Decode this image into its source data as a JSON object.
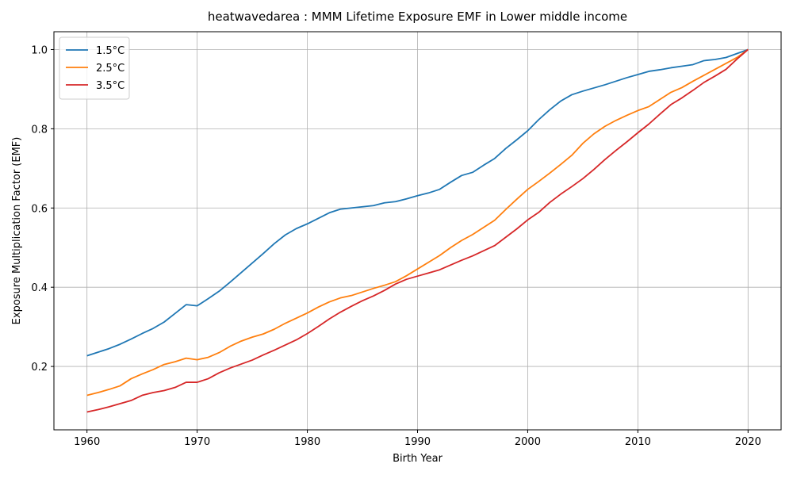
{
  "chart_data": {
    "type": "line",
    "title": "heatwavedarea : MMM Lifetime Exposure EMF in Lower middle income",
    "xlabel": "Birth Year",
    "ylabel": "Exposure Multiplication Factor (EMF)",
    "xlim": [
      1957.0,
      2023.0
    ],
    "ylim": [
      0.04,
      1.045
    ],
    "xticks": [
      1960,
      1970,
      1980,
      1990,
      2000,
      2010,
      2020
    ],
    "yticks": [
      0.2,
      0.4,
      0.6,
      0.8,
      1.0
    ],
    "ytick_labels": [
      "0.2",
      "0.4",
      "0.6",
      "0.8",
      "1.0"
    ],
    "grid": true,
    "legend_position": "top-left",
    "x": [
      1960,
      1961,
      1962,
      1963,
      1964,
      1965,
      1966,
      1967,
      1968,
      1969,
      1970,
      1971,
      1972,
      1973,
      1974,
      1975,
      1976,
      1977,
      1978,
      1979,
      1980,
      1981,
      1982,
      1983,
      1984,
      1985,
      1986,
      1987,
      1988,
      1989,
      1990,
      1991,
      1992,
      1993,
      1994,
      1995,
      1996,
      1997,
      1998,
      1999,
      2000,
      2001,
      2002,
      2003,
      2004,
      2005,
      2006,
      2007,
      2008,
      2009,
      2010,
      2011,
      2012,
      2013,
      2014,
      2015,
      2016,
      2017,
      2018,
      2019,
      2020
    ],
    "series": [
      {
        "name": "1.5°C",
        "color": "#1f77b4",
        "values": [
          0.227,
          0.236,
          0.245,
          0.256,
          0.269,
          0.283,
          0.296,
          0.312,
          0.334,
          0.356,
          0.353,
          0.371,
          0.39,
          0.413,
          0.437,
          0.461,
          0.485,
          0.51,
          0.532,
          0.548,
          0.56,
          0.574,
          0.588,
          0.597,
          0.6,
          0.603,
          0.606,
          0.613,
          0.616,
          0.623,
          0.631,
          0.638,
          0.647,
          0.665,
          0.682,
          0.69,
          0.708,
          0.725,
          0.75,
          0.772,
          0.795,
          0.823,
          0.848,
          0.87,
          0.886,
          0.895,
          0.903,
          0.911,
          0.92,
          0.929,
          0.937,
          0.945,
          0.949,
          0.954,
          0.958,
          0.962,
          0.972,
          0.975,
          0.98,
          0.99,
          1.0
        ]
      },
      {
        "name": "2.5°C",
        "color": "#ff7f0e",
        "values": [
          0.127,
          0.134,
          0.142,
          0.151,
          0.169,
          0.181,
          0.192,
          0.205,
          0.212,
          0.221,
          0.217,
          0.223,
          0.235,
          0.251,
          0.264,
          0.274,
          0.282,
          0.294,
          0.309,
          0.322,
          0.335,
          0.35,
          0.363,
          0.373,
          0.379,
          0.388,
          0.397,
          0.405,
          0.414,
          0.429,
          0.446,
          0.463,
          0.48,
          0.5,
          0.518,
          0.533,
          0.551,
          0.569,
          0.596,
          0.622,
          0.647,
          0.667,
          0.688,
          0.71,
          0.733,
          0.763,
          0.787,
          0.806,
          0.821,
          0.834,
          0.846,
          0.856,
          0.874,
          0.892,
          0.904,
          0.92,
          0.935,
          0.95,
          0.965,
          0.98,
          1.0
        ]
      },
      {
        "name": "3.5°C",
        "color": "#d62728",
        "values": [
          0.085,
          0.091,
          0.098,
          0.106,
          0.114,
          0.127,
          0.134,
          0.139,
          0.147,
          0.16,
          0.16,
          0.169,
          0.184,
          0.196,
          0.206,
          0.216,
          0.229,
          0.241,
          0.254,
          0.267,
          0.283,
          0.301,
          0.32,
          0.337,
          0.352,
          0.366,
          0.378,
          0.392,
          0.408,
          0.42,
          0.428,
          0.436,
          0.444,
          0.456,
          0.468,
          0.479,
          0.492,
          0.505,
          0.526,
          0.547,
          0.57,
          0.589,
          0.614,
          0.635,
          0.654,
          0.674,
          0.697,
          0.722,
          0.745,
          0.767,
          0.79,
          0.812,
          0.837,
          0.861,
          0.878,
          0.897,
          0.917,
          0.933,
          0.95,
          0.976,
          1.0
        ]
      }
    ]
  }
}
